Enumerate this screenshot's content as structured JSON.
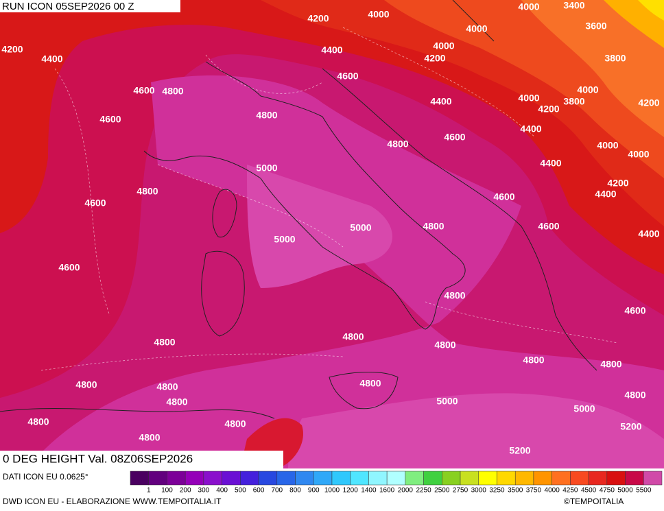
{
  "header": {
    "run": "RUN ICON 05SEP2026 00 Z",
    "field": "0 DEG HEIGHT Val. 08Z06SEP2026"
  },
  "footer": {
    "source": "DATI ICON EU 0.0625°",
    "credit": "DWD ICON EU - ELABORAZIONE WWW.TEMPOITALIA.IT",
    "copyright": "©TEMPOITALIA"
  },
  "legend": {
    "colors": [
      "#4a0060",
      "#62007e",
      "#7c0098",
      "#9400b8",
      "#8a10cc",
      "#6a10d4",
      "#4420dc",
      "#2848e0",
      "#2866e8",
      "#3088f0",
      "#30a8f8",
      "#30c8fc",
      "#50e6ff",
      "#90f6ff",
      "#b0ffff",
      "#80ee80",
      "#40d040",
      "#88d020",
      "#c8e020",
      "#ffff00",
      "#ffd800",
      "#ffb800",
      "#ff9400",
      "#ff7020",
      "#f84a20",
      "#e82820",
      "#d81010",
      "#c80848",
      "#d04aa8"
    ],
    "labels": [
      "1",
      "100",
      "200",
      "300",
      "400",
      "500",
      "600",
      "700",
      "800",
      "900",
      "1000",
      "1200",
      "1400",
      "1600",
      "2000",
      "2250",
      "2500",
      "2750",
      "3000",
      "3250",
      "3500",
      "3750",
      "4000",
      "4250",
      "4500",
      "4750",
      "5000",
      "5500"
    ]
  },
  "contour_labels": [
    "4200",
    "4000",
    "4000",
    "3400",
    "4000",
    "3600",
    "4200",
    "4400",
    "4400",
    "4000",
    "4200",
    "3800",
    "4600",
    "4600",
    "4800",
    "4000",
    "4000",
    "3800",
    "4200",
    "4200",
    "4400",
    "4800",
    "4600",
    "4400",
    "4600",
    "4800",
    "4000",
    "4000",
    "5000",
    "4400",
    "4200",
    "4800",
    "4400",
    "4600",
    "4600",
    "5000",
    "4800",
    "4600",
    "4400",
    "5000",
    "4600",
    "4800",
    "4600",
    "4800",
    "4800",
    "4800",
    "4800",
    "4800",
    "4800",
    "4800",
    "4800",
    "4800",
    "4800",
    "5000",
    "5000",
    "4800",
    "4800",
    "5200",
    "4800",
    "5200"
  ]
}
